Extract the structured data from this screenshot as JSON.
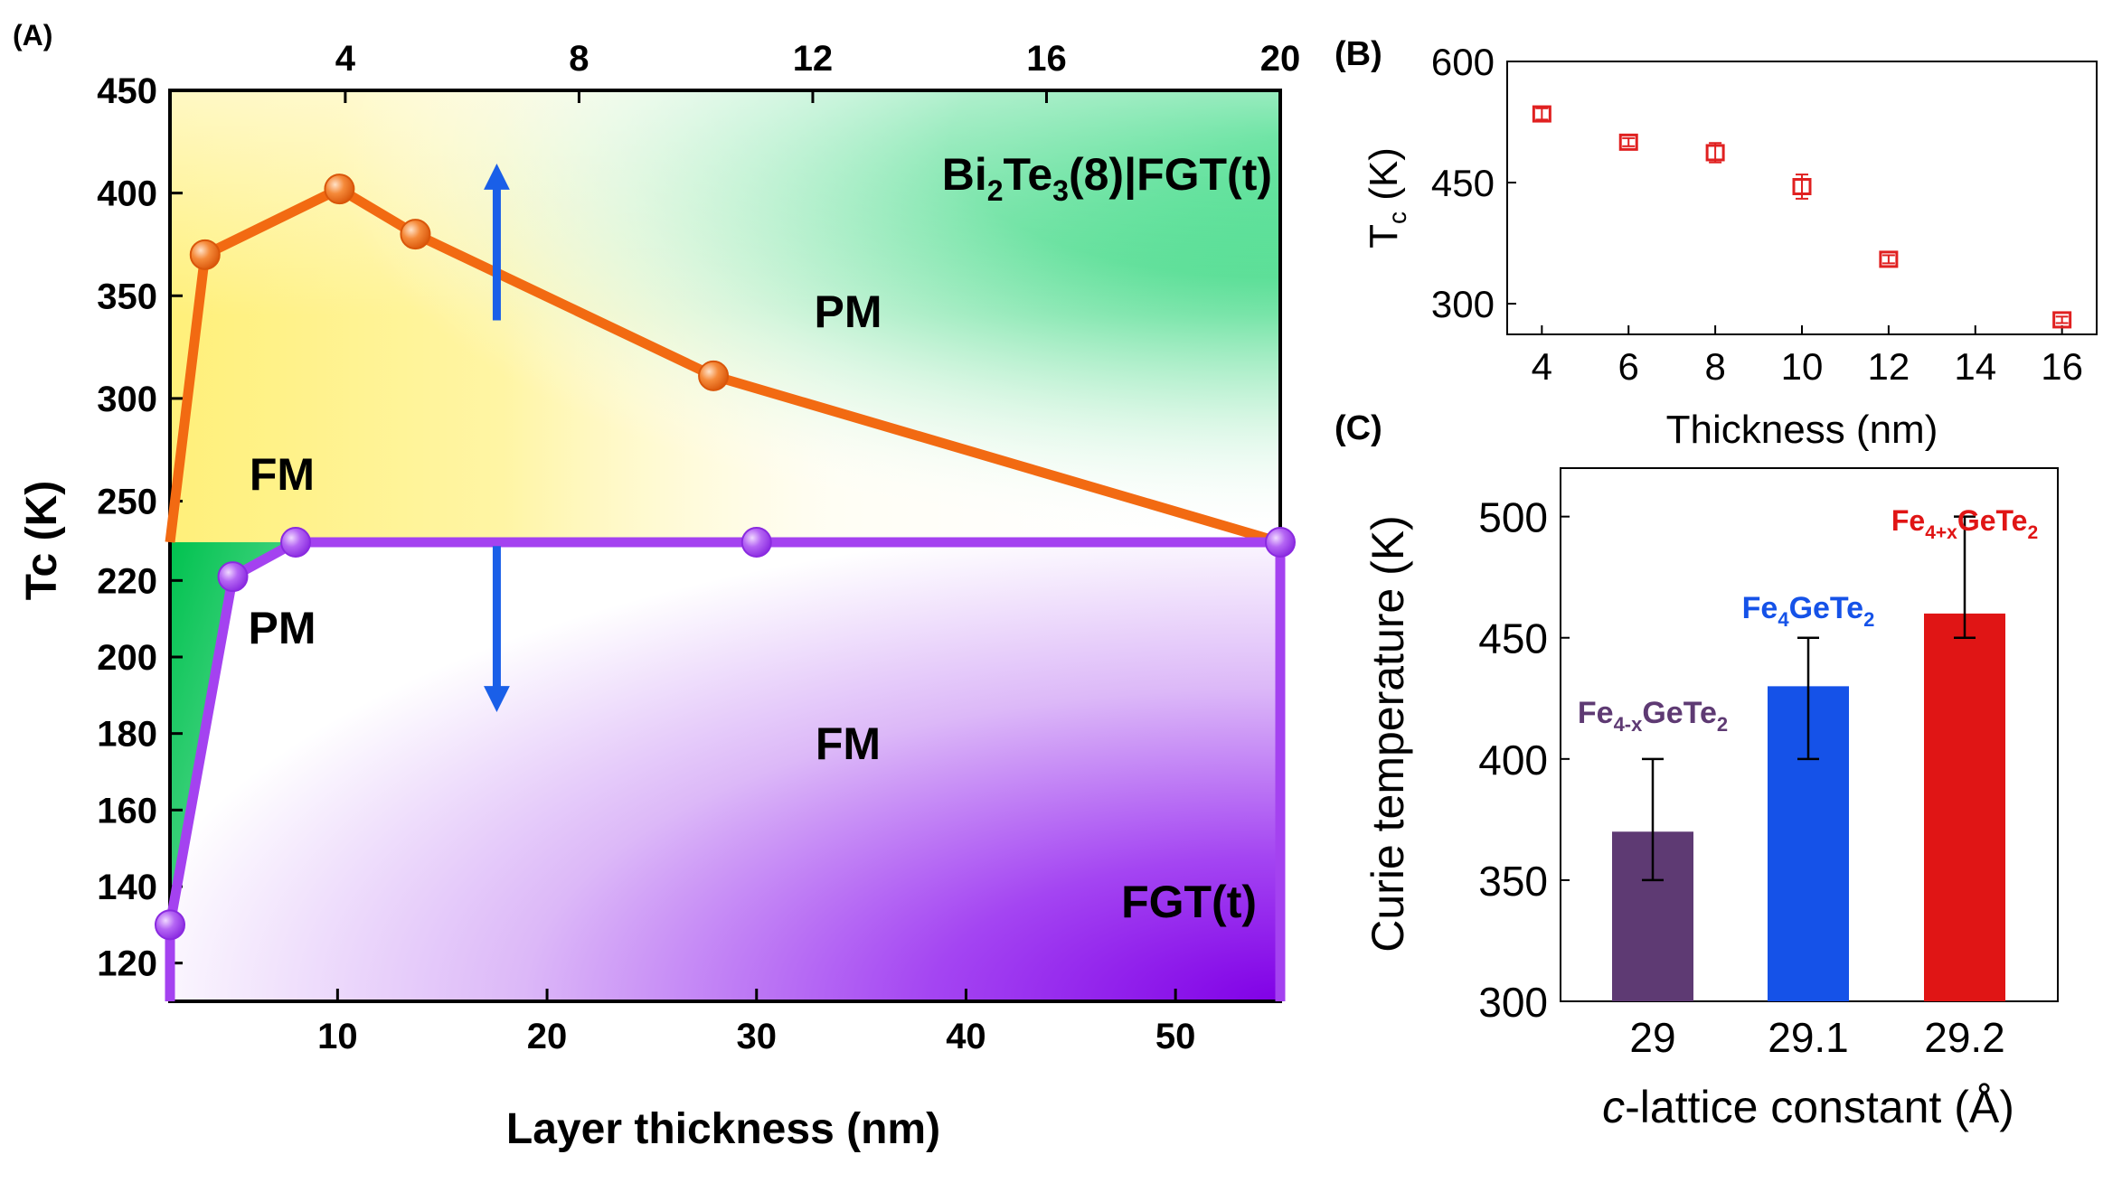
{
  "chart_data": [
    {
      "panel": "(A)",
      "type": "line",
      "xlabel": "Layer thickness (nm)",
      "ylabel": "Tc (K)",
      "x_bottom": {
        "range": [
          2,
          55
        ],
        "ticks": [
          10,
          20,
          30,
          40,
          50
        ]
      },
      "x_top": {
        "range": [
          1,
          20
        ],
        "ticks": [
          4,
          8,
          12,
          16,
          20
        ]
      },
      "y_upper": {
        "range": [
          230,
          450
        ],
        "ticks": [
          250,
          300,
          350,
          400,
          450
        ]
      },
      "y_lower": {
        "range": [
          110,
          230
        ],
        "ticks": [
          120,
          140,
          160,
          180,
          200,
          220
        ]
      },
      "series": [
        {
          "name": "Bi2Te3(8)|FGT(t)",
          "axis": "top",
          "color": "#f26a12",
          "x": [
            1,
            1.6,
            3.9,
            5.2,
            10.3,
            20
          ],
          "y": [
            230,
            370,
            402,
            380,
            311,
            230
          ]
        },
        {
          "name": "FGT(t)",
          "axis": "bottom",
          "color": "#a442f0",
          "x": [
            2,
            2,
            5,
            8,
            30,
            55,
            55
          ],
          "y": [
            110,
            130,
            221,
            230,
            230,
            230,
            110
          ]
        }
      ],
      "annotations": {
        "label_top": {
          "main": "Bi",
          "sub1": "2",
          "mid": "Te",
          "sub2": "3",
          "tail": "(8)|FGT(t)"
        },
        "label_bottom": "FGT(t)",
        "pm_upper": "PM",
        "fm_upper": "FM",
        "pm_lower": "PM",
        "fm_lower": "FM"
      },
      "colors": {
        "green": "#00c857",
        "yellow": "#fff27a",
        "purple": "#8b00e8",
        "arrow": "#1a5fe8"
      }
    },
    {
      "panel": "(B)",
      "type": "scatter",
      "xlabel": "Thickness (nm)",
      "ylabel_main": "T",
      "ylabel_sub": "c",
      "ylabel_unit": " (K)",
      "x": [
        4,
        6,
        8,
        10,
        12,
        16
      ],
      "y": [
        535,
        500,
        487,
        445,
        355,
        280
      ],
      "yerr": [
        7,
        5,
        12,
        15,
        5,
        4
      ],
      "xlim": [
        3.2,
        16.8
      ],
      "ylim": [
        262,
        600
      ],
      "xticks": [
        4,
        6,
        8,
        10,
        12,
        14,
        16
      ],
      "yticks": [
        300,
        450,
        600
      ],
      "color": "#e02020"
    },
    {
      "panel": "(C)",
      "type": "bar",
      "xlabel_italic": "c",
      "xlabel_rest": "-lattice constant (Å)",
      "ylabel": "Curie temperature (K)",
      "categories": [
        "29",
        "29.1",
        "29.2"
      ],
      "values": [
        370,
        430,
        460
      ],
      "err_low": [
        350,
        400,
        450
      ],
      "err_high": [
        400,
        450,
        500
      ],
      "ylim": [
        300,
        520
      ],
      "yticks": [
        300,
        350,
        400,
        450,
        500
      ],
      "colors": [
        "#5e3a73",
        "#1552e8",
        "#e01515"
      ],
      "bar_labels": [
        {
          "main": "Fe",
          "sub": "4-x",
          "rest": "GeTe",
          "sub2": "2"
        },
        {
          "main": "Fe",
          "sub": "4",
          "rest": "GeTe",
          "sub2": "2"
        },
        {
          "main": "Fe",
          "sub": "4+x",
          "rest": "GeTe",
          "sub2": "2"
        }
      ]
    }
  ]
}
